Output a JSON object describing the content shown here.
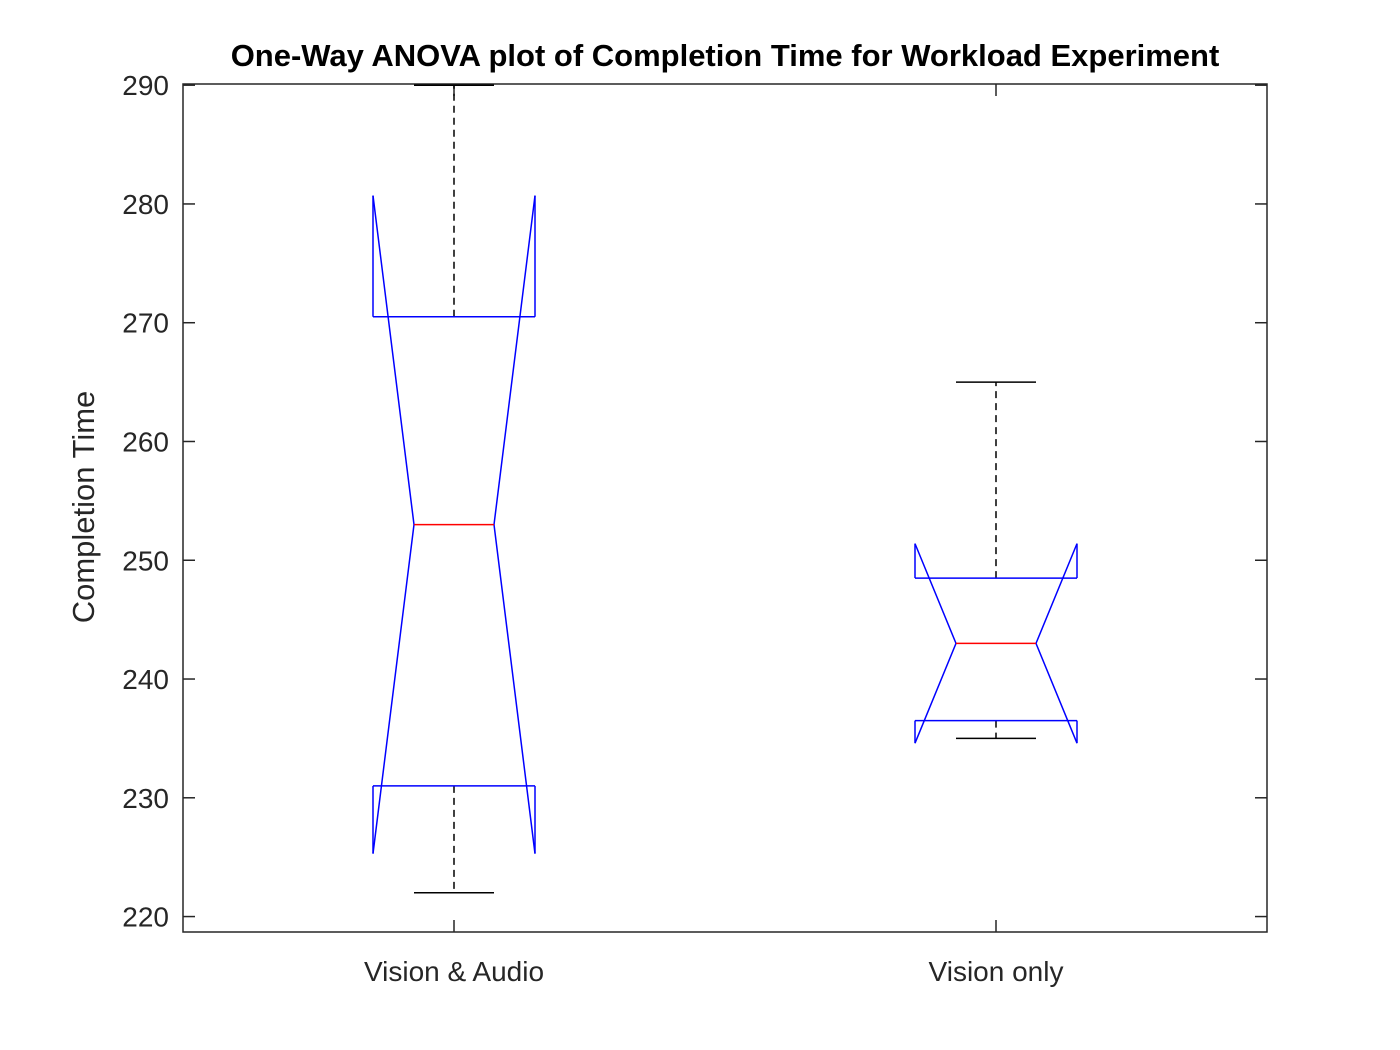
{
  "chart_data": {
    "type": "box",
    "title": "One-Way ANOVA plot of Completion Time for Workload Experiment",
    "xlabel": "",
    "ylabel": "Completion Time",
    "ylim": [
      218.7,
      290.1
    ],
    "yticks": [
      220,
      230,
      240,
      250,
      260,
      270,
      280,
      290
    ],
    "grid": false,
    "notched": true,
    "categories": [
      "Vision & Audio",
      "Vision only"
    ],
    "boxes": [
      {
        "category": "Vision & Audio",
        "whisker_low": 222,
        "q1": 231,
        "median": 253,
        "q3": 270.5,
        "whisker_high": 290,
        "notch_low": 225.3,
        "notch_high": 280.7
      },
      {
        "category": "Vision only",
        "whisker_low": 235,
        "q1": 236.5,
        "median": 243,
        "q3": 248.5,
        "whisker_high": 265,
        "notch_low": 234.6,
        "notch_high": 251.4
      }
    ],
    "colors": {
      "box": "#0000ff",
      "median": "#ff0000",
      "whisker": "#000000",
      "axis": "#262626"
    }
  }
}
